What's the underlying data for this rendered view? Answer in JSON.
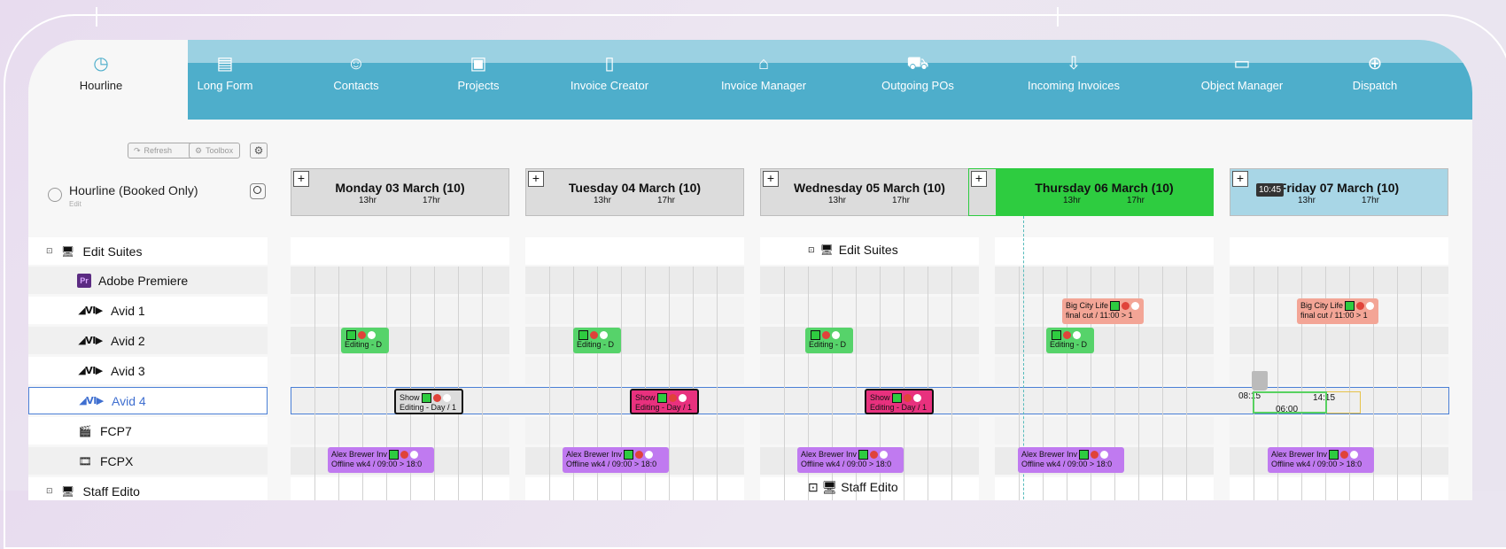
{
  "nav": {
    "items": [
      {
        "label": "Hourline",
        "icon": "clock-icon"
      },
      {
        "label": "Long Form",
        "icon": "clipboard-icon"
      },
      {
        "label": "Contacts",
        "icon": "contact-card-icon"
      },
      {
        "label": "Projects",
        "icon": "briefcase-icon"
      },
      {
        "label": "Invoice Creator",
        "icon": "document-icon"
      },
      {
        "label": "Invoice Manager",
        "icon": "bank-icon"
      },
      {
        "label": "Outgoing POs",
        "icon": "cart-icon"
      },
      {
        "label": "Incoming Invoices",
        "icon": "download-document-icon"
      },
      {
        "label": "Object Manager",
        "icon": "folder-icon"
      },
      {
        "label": "Dispatch",
        "icon": "download-circle-icon"
      }
    ]
  },
  "toolbar": {
    "refresh_label": "Refresh",
    "toolbox_label": "Toolbox"
  },
  "view": {
    "title": "Hourline (Booked Only)",
    "subtitle": "Edit"
  },
  "resources": [
    {
      "label": "Edit Suites",
      "kind": "group"
    },
    {
      "label": "Adobe Premiere",
      "kind": "premiere"
    },
    {
      "label": "Avid 1",
      "kind": "avid"
    },
    {
      "label": "Avid 2",
      "kind": "avid"
    },
    {
      "label": "Avid 3",
      "kind": "avid"
    },
    {
      "label": "Avid 4",
      "kind": "avid",
      "selected": true
    },
    {
      "label": "FCP7",
      "kind": "fcp7"
    },
    {
      "label": "FCPX",
      "kind": "fcpx"
    },
    {
      "label": "Staff Edito",
      "kind": "group"
    }
  ],
  "days": [
    {
      "title": "Monday 03 March (10)",
      "h1": "13hr",
      "h2": "17hr",
      "color": "#dcdcdc"
    },
    {
      "title": "Tuesday 04 March (10)",
      "h1": "13hr",
      "h2": "17hr",
      "color": "#dcdcdc"
    },
    {
      "title": "Wednesday 05 March (10)",
      "h1": "13hr",
      "h2": "17hr",
      "color": "#dcdcdc"
    },
    {
      "title": "Thursday 06 March (10)",
      "h1": "13hr",
      "h2": "17hr",
      "color": "#2ecc40"
    },
    {
      "title": "Friday 07 March (10)",
      "h1": "13hr",
      "h2": "17hr",
      "color": "#a8d6e6"
    }
  ],
  "group_header": "Edit Suites",
  "current_time": "10:45",
  "drag_times": {
    "start": "08:15",
    "end": "14:15",
    "duration": "06:00"
  },
  "events": {
    "avid2": "Editing - D",
    "avid4_a": "Show",
    "avid4_b": "Editing - Day / 1",
    "fcpx_a": "Alex Brewer Inv",
    "fcpx_b": "Offline wk4 / 09:00 > 18:0",
    "bigcity_a": "Big City Life",
    "bigcity_b": "final cut /  11:00 > 1"
  },
  "colors": {
    "nav": "#4eaecb",
    "today": "#2ecc40",
    "friday": "#a8d6e6",
    "selected": "#4a7fd6"
  }
}
